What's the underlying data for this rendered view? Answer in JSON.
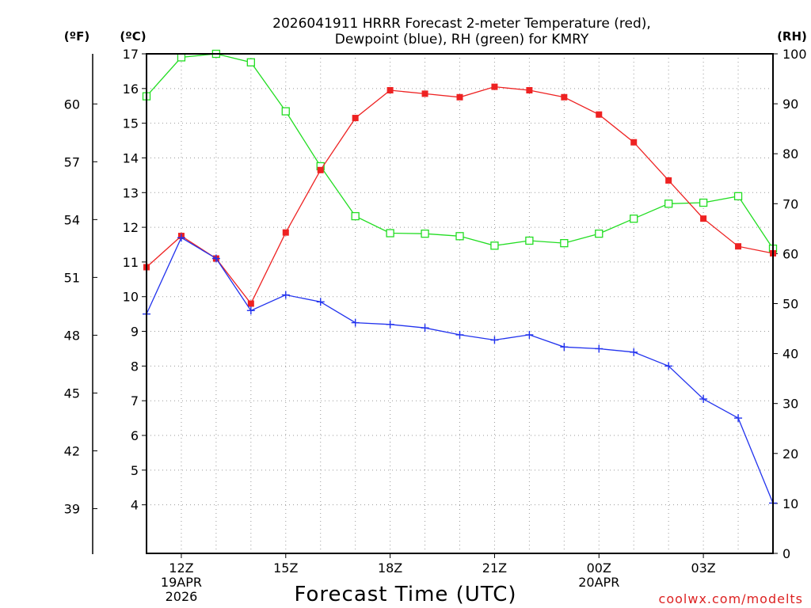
{
  "chart_data": {
    "type": "line",
    "title_line1": "2026041911 HRRR Forecast 2-meter Temperature (red),",
    "title_line2": "Dewpoint (blue), RH (green) for KMRY",
    "xlabel": "Forecast Time (UTC)",
    "watermark": "coolwx.com/modelts",
    "axis_unit_labels": {
      "fahrenheit": "(ºF)",
      "celsius": "(ºC)",
      "rh": "(RH)"
    },
    "hours": [
      11,
      12,
      13,
      14,
      15,
      16,
      17,
      18,
      19,
      20,
      21,
      22,
      23,
      24,
      25,
      26,
      27,
      28,
      29
    ],
    "xlim": [
      11,
      29
    ],
    "x_ticks": [
      {
        "hour": 12,
        "label": "12Z",
        "sub1": "19APR",
        "sub2": "2026"
      },
      {
        "hour": 15,
        "label": "15Z",
        "sub1": "",
        "sub2": ""
      },
      {
        "hour": 18,
        "label": "18Z",
        "sub1": "",
        "sub2": ""
      },
      {
        "hour": 21,
        "label": "21Z",
        "sub1": "",
        "sub2": ""
      },
      {
        "hour": 24,
        "label": "00Z",
        "sub1": "20APR",
        "sub2": ""
      },
      {
        "hour": 27,
        "label": "03Z",
        "sub1": "",
        "sub2": ""
      }
    ],
    "celsius_axis": {
      "ylim": [
        2.6,
        17
      ],
      "ticks": [
        4,
        5,
        6,
        7,
        8,
        9,
        10,
        11,
        12,
        13,
        14,
        15,
        16,
        17
      ]
    },
    "fahrenheit_ticks": [
      39,
      42,
      45,
      48,
      51,
      54,
      57,
      60
    ],
    "rh_axis": {
      "ylim": [
        0,
        100
      ],
      "ticks": [
        0,
        10,
        20,
        30,
        40,
        50,
        60,
        70,
        80,
        90,
        100
      ]
    },
    "series": [
      {
        "name": "Temperature",
        "axis": "celsius",
        "color": "#ee2222",
        "marker": "filled-square",
        "values": [
          10.85,
          11.75,
          11.1,
          9.8,
          11.85,
          13.65,
          15.15,
          15.95,
          15.85,
          15.75,
          16.05,
          15.95,
          15.75,
          15.25,
          14.45,
          13.35,
          12.25,
          11.45,
          11.25
        ]
      },
      {
        "name": "Dewpoint",
        "axis": "celsius",
        "color": "#2233ee",
        "marker": "plus",
        "values": [
          9.5,
          11.7,
          11.1,
          9.6,
          10.05,
          9.85,
          9.25,
          9.2,
          9.1,
          8.9,
          8.75,
          8.9,
          8.55,
          8.5,
          8.4,
          8.0,
          7.05,
          6.5,
          4.05
        ]
      },
      {
        "name": "Relative Humidity",
        "axis": "rh",
        "color": "#22dd22",
        "marker": "open-square",
        "values": [
          91.5,
          99.3,
          100,
          98.3,
          88.5,
          77.5,
          67.5,
          64.1,
          64.0,
          63.5,
          61.6,
          62.6,
          62.1,
          64.0,
          67.0,
          70.0,
          70.2,
          71.5,
          61.0
        ]
      }
    ]
  }
}
